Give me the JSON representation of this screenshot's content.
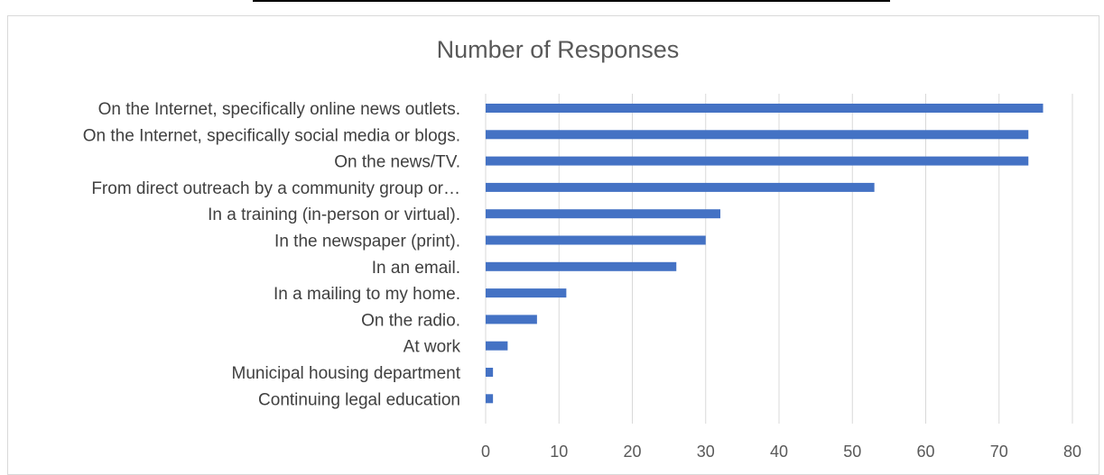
{
  "chart_data": {
    "type": "bar",
    "orientation": "horizontal",
    "title": "Number of Responses",
    "categories": [
      "On the Internet, specifically online news outlets.",
      "On the Internet, specifically social media or blogs.",
      "On the news/TV.",
      "From direct outreach by a community group or…",
      "In a training (in-person or virtual).",
      "In the newspaper (print).",
      "In an email.",
      "In a mailing to my home.",
      "On the radio.",
      "At work",
      "Municipal housing department",
      "Continuing legal education"
    ],
    "values": [
      76,
      74,
      74,
      53,
      32,
      30,
      26,
      11,
      7,
      3,
      1,
      1
    ],
    "xlim": [
      0,
      80
    ],
    "xticks": [
      "0",
      "10",
      "20",
      "30",
      "40",
      "50",
      "60",
      "70",
      "80"
    ],
    "grid": true,
    "legend": "none",
    "colors": {
      "bar": "#4472c4",
      "grid": "#d9d9d9"
    }
  }
}
